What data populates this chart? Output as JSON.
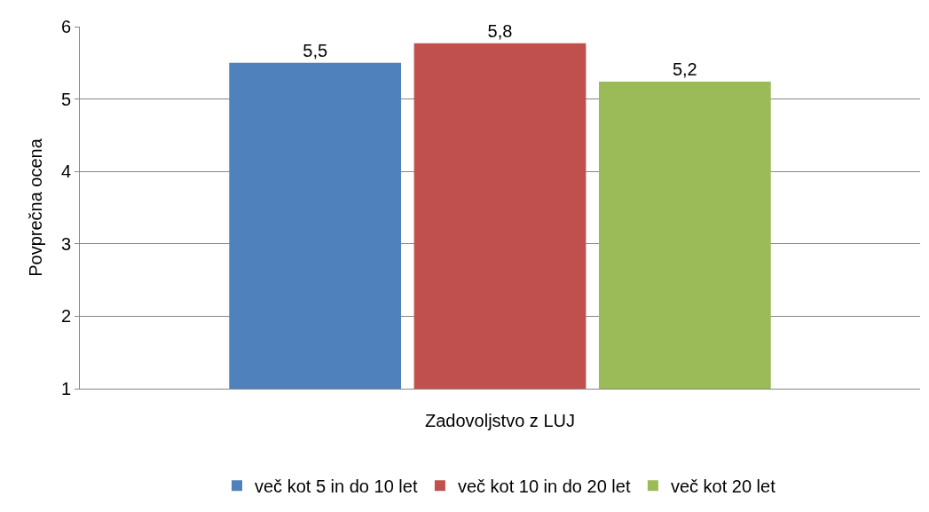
{
  "chart_data": {
    "type": "bar",
    "ylabel": "Povprečna ocena",
    "categories": [
      "Zadovoljstvo z LUJ"
    ],
    "series": [
      {
        "name": "več kot 5 in do 10 let",
        "color": "#4f81bd",
        "values": [
          5.5
        ],
        "value_labels": [
          "5,5"
        ]
      },
      {
        "name": "več kot 10 in do 20 let",
        "color": "#c0504d",
        "values": [
          5.77
        ],
        "value_labels": [
          "5,8"
        ]
      },
      {
        "name": "več kot 20 let",
        "color": "#9bbb59",
        "values": [
          5.24
        ],
        "value_labels": [
          "5,2"
        ]
      }
    ],
    "ylim": [
      1,
      6
    ],
    "yticks": [
      1,
      2,
      3,
      4,
      5,
      6
    ],
    "grid": "y",
    "legend": "bottom"
  }
}
